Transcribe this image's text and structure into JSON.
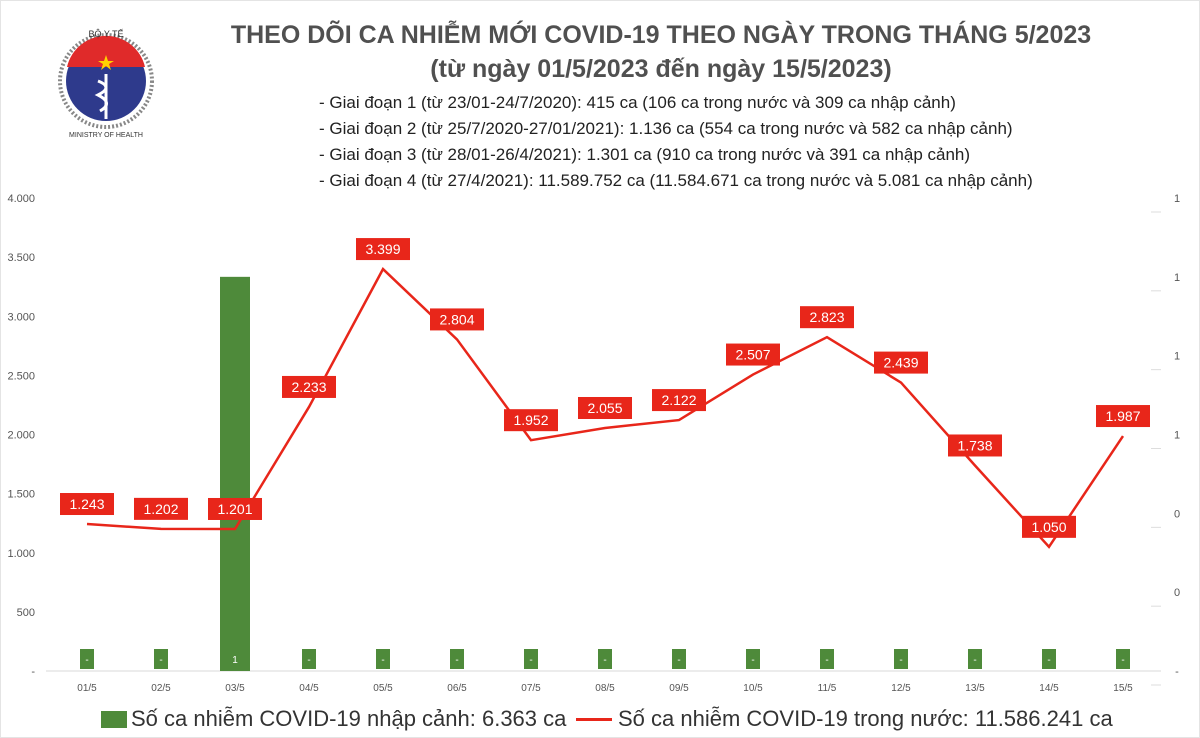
{
  "header": {
    "title": "THEO DÕI CA NHIỄM MỚI COVID-19 THEO NGÀY TRONG THÁNG 5/2023",
    "subtitle": "(từ ngày 01/5/2023 đến ngày 15/5/2023)",
    "logo_text": [
      "BỘ Y TẾ",
      "MINISTRY OF HEALTH"
    ],
    "phases": [
      "- Giai đoạn 1 (từ 23/01-24/7/2020): 415 ca (106 ca trong nước và 309 ca nhập cảnh)",
      "- Giai đoạn 2 (từ 25/7/2020-27/01/2021): 1.136 ca (554 ca trong nước và 582 ca nhập cảnh)",
      "- Giai đoạn 3 (từ 28/01-26/4/2021): 1.301 ca (910 ca trong nước và 391 ca nhập cảnh)",
      "- Giai đoạn 4 (từ 27/4/2021): 11.589.752 ca (11.584.671 ca trong nước và 5.081 ca nhập cảnh)"
    ]
  },
  "chart_data": {
    "type": "bar+line",
    "categories": [
      "01/5",
      "02/5",
      "03/5",
      "04/5",
      "05/5",
      "06/5",
      "07/5",
      "08/5",
      "09/5",
      "10/5",
      "11/5",
      "12/5",
      "13/5",
      "14/5",
      "15/5"
    ],
    "series": [
      {
        "name": "Số ca nhiễm COVID-19 nhập cảnh: 6.363 ca",
        "type": "bar",
        "axis": "right",
        "color": "#4e8a3a",
        "values": [
          0,
          0,
          1,
          0,
          0,
          0,
          0,
          0,
          0,
          0,
          0,
          0,
          0,
          0,
          0
        ],
        "labels": [
          "-",
          "-",
          "1",
          "-",
          "-",
          "-",
          "-",
          "-",
          "-",
          "-",
          "-",
          "-",
          "-",
          "-",
          "-"
        ]
      },
      {
        "name": "Số ca nhiễm COVID-19 trong nước: 11.586.241 ca",
        "type": "line",
        "axis": "left",
        "color": "#e8261a",
        "values": [
          1243,
          1202,
          1201,
          2233,
          3399,
          2804,
          1952,
          2055,
          2122,
          2507,
          2823,
          2439,
          1738,
          1050,
          1987
        ],
        "labels": [
          "1.243",
          "1.202",
          "1.201",
          "2.233",
          "3.399",
          "2.804",
          "1.952",
          "2.055",
          "2.122",
          "2.507",
          "2.823",
          "2.439",
          "1.738",
          "1.050",
          "1.987"
        ]
      }
    ],
    "y_left": {
      "ylim": [
        0,
        4000
      ],
      "ticks": [
        "-",
        "500",
        "1.000",
        "1.500",
        "2.000",
        "2.500",
        "3.000",
        "3.500",
        "4.000"
      ]
    },
    "y_right": {
      "ylim": [
        0,
        1.2
      ],
      "ticks": [
        "-",
        "0",
        "0",
        "1",
        "1",
        "1",
        "1"
      ]
    },
    "legend": "bottom",
    "grid": false
  }
}
